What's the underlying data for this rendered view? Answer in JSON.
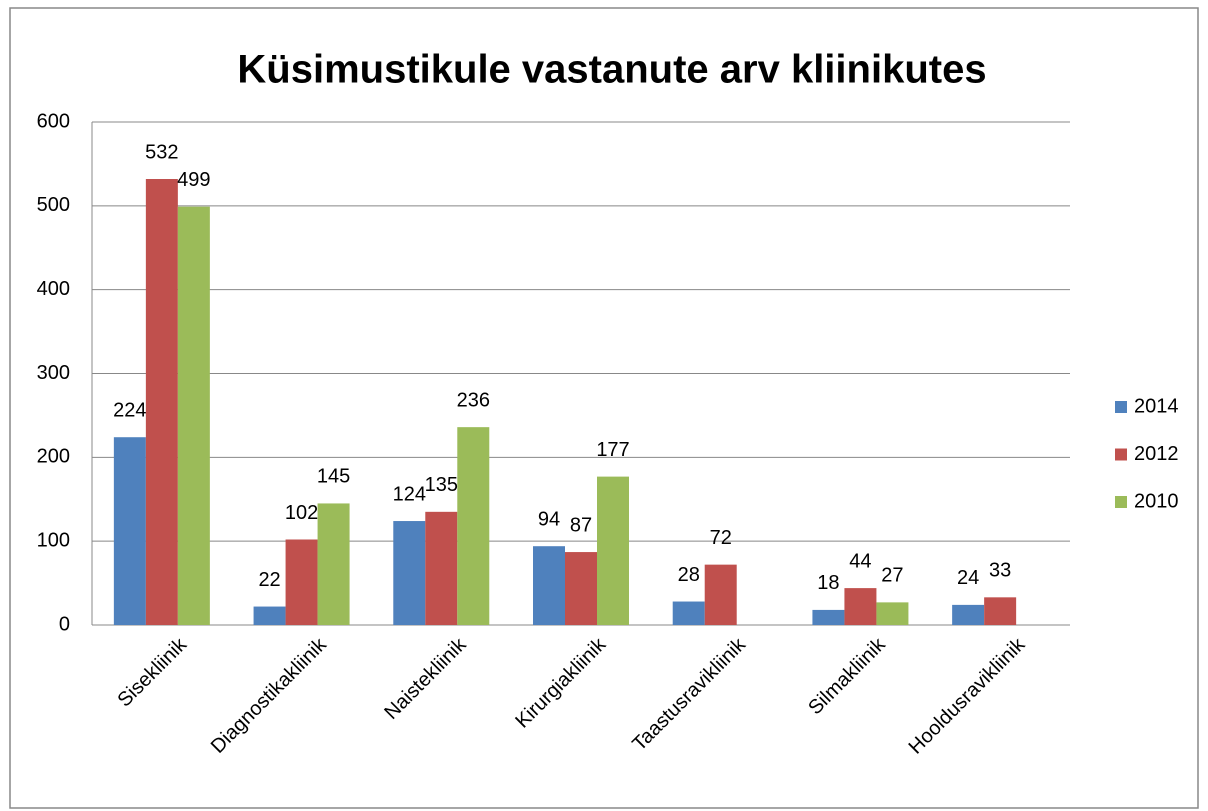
{
  "chart_data": {
    "type": "bar",
    "title": "Küsimustikule vastanute arv kliinikutes",
    "categories": [
      "Sisekliinik",
      "Diagnostikakliinik",
      "Naistekliinik",
      "Kirurgiakliinik",
      "Taastusravikliinik",
      "Silmakliinik",
      "Hooldusravikliinik"
    ],
    "series": [
      {
        "name": "2014",
        "color": "#4f81bd",
        "values": [
          224,
          22,
          124,
          94,
          28,
          18,
          24
        ]
      },
      {
        "name": "2012",
        "color": "#c0504d",
        "values": [
          532,
          102,
          135,
          87,
          72,
          44,
          33
        ]
      },
      {
        "name": "2010",
        "color": "#9bbb59",
        "values": [
          499,
          145,
          236,
          177,
          null,
          27,
          null
        ]
      }
    ],
    "ylim": [
      0,
      600
    ],
    "yticks": [
      0,
      100,
      200,
      300,
      400,
      500,
      600
    ],
    "grid": true,
    "legend": "right"
  }
}
